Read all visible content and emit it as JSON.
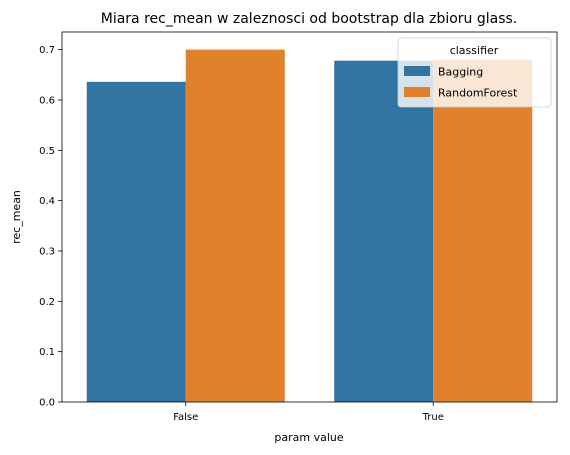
{
  "chart_data": {
    "type": "bar",
    "title": "Miara rec_mean w zaleznosci od bootstrap dla zbioru glass.",
    "xlabel": "param value",
    "ylabel": "rec_mean",
    "categories": [
      "False",
      "True"
    ],
    "series": [
      {
        "name": "Bagging",
        "values": [
          0.636,
          0.678
        ],
        "color": "#3274a1"
      },
      {
        "name": "RandomForest",
        "values": [
          0.7,
          0.68
        ],
        "color": "#e1812c"
      }
    ],
    "ylim": [
      0,
      0.735
    ],
    "yticks": [
      "0.0",
      "0.1",
      "0.2",
      "0.3",
      "0.4",
      "0.5",
      "0.6",
      "0.7"
    ],
    "legend": {
      "title": "classifier",
      "placement": "top-right"
    },
    "grid": false
  }
}
